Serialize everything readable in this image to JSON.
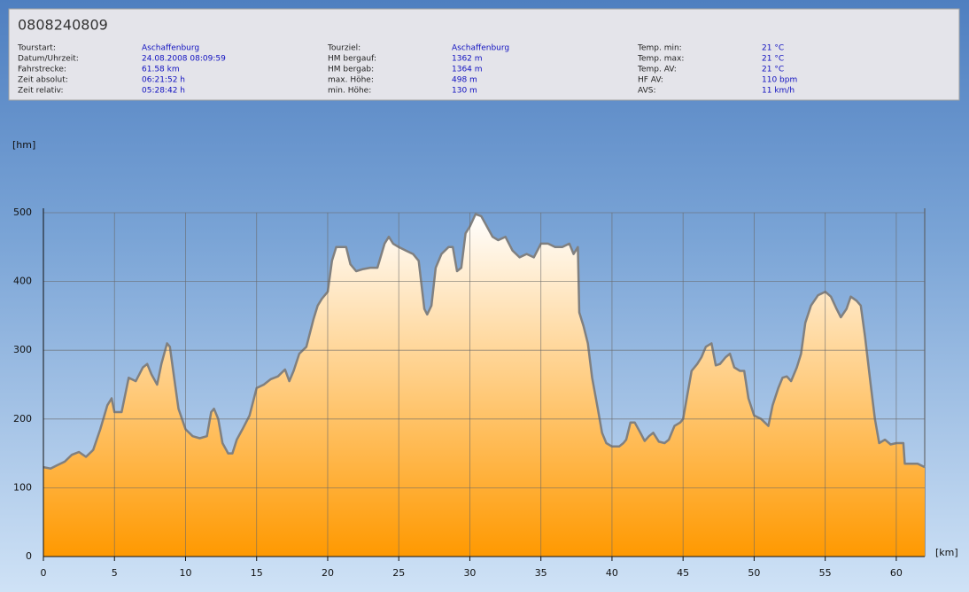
{
  "header": {
    "title": "0808240809",
    "columns": [
      [
        {
          "label": "Tourstart:",
          "value": "Aschaffenburg"
        },
        {
          "label": "Datum/Uhrzeit:",
          "value": "24.08.2008 08:09:59"
        },
        {
          "label": "Fahrstrecke:",
          "value": "61.58 km"
        },
        {
          "label": "Zeit absolut:",
          "value": "06:21:52 h"
        },
        {
          "label": "Zeit relativ:",
          "value": "05:28:42 h"
        }
      ],
      [
        {
          "label": "Tourziel:",
          "value": "Aschaffenburg"
        },
        {
          "label": "HM bergauf:",
          "value": "1362 m"
        },
        {
          "label": "HM bergab:",
          "value": "1364 m"
        },
        {
          "label": "max. Höhe:",
          "value": "498 m"
        },
        {
          "label": "min. Höhe:",
          "value": "130 m"
        }
      ],
      [
        {
          "label": "Temp. min:",
          "value": "21 °C"
        },
        {
          "label": "Temp. max:",
          "value": "21 °C"
        },
        {
          "label": "Temp. AV:",
          "value": "21 °C"
        },
        {
          "label": "HF AV:",
          "value": "110 bpm"
        },
        {
          "label": "AVS:",
          "value": "11 km/h"
        }
      ]
    ]
  },
  "chart_data": {
    "type": "area",
    "x_label": "[km]",
    "y_label": "[hm]",
    "x": [
      0,
      0.5,
      1,
      1.5,
      2,
      2.5,
      3,
      3.5,
      4,
      4.5,
      4.8,
      5,
      5.5,
      6,
      6.5,
      7,
      7.3,
      7.6,
      8,
      8.3,
      8.7,
      8.9,
      9.2,
      9.5,
      10,
      10.5,
      11,
      11.5,
      11.8,
      12,
      12.3,
      12.6,
      13,
      13.3,
      13.6,
      14,
      14.5,
      15,
      15.5,
      16,
      16.5,
      17,
      17.3,
      17.6,
      18,
      18.5,
      19,
      19.3,
      19.6,
      20,
      20.3,
      20.6,
      21,
      21.3,
      21.6,
      22,
      22.5,
      23,
      23.5,
      24,
      24.3,
      24.6,
      25,
      25.5,
      26,
      26.4,
      26.8,
      27,
      27.3,
      27.6,
      28,
      28.5,
      28.8,
      29.1,
      29.4,
      29.7,
      30,
      30.4,
      30.8,
      31.2,
      31.6,
      32,
      32.5,
      33,
      33.5,
      34,
      34.5,
      35,
      35.5,
      36,
      36.5,
      37,
      37.3,
      37.6,
      37.7,
      38,
      38.3,
      38.6,
      39,
      39.3,
      39.6,
      40,
      40.5,
      40.8,
      41,
      41.3,
      41.6,
      42,
      42.3,
      42.6,
      42.9,
      43.3,
      43.7,
      44,
      44.4,
      44.8,
      45,
      45.3,
      45.6,
      46,
      46.3,
      46.6,
      47,
      47.3,
      47.6,
      48,
      48.3,
      48.6,
      49,
      49.3,
      49.6,
      50,
      50.5,
      51,
      51.3,
      51.7,
      52,
      52.3,
      52.6,
      53,
      53.3,
      53.6,
      54,
      54.5,
      55,
      55.4,
      55.8,
      56.1,
      56.5,
      56.8,
      57.2,
      57.5,
      57.8,
      58.2,
      58.5,
      58.8,
      59.2,
      59.6,
      60,
      60.5,
      60.6,
      61,
      61.5,
      62
    ],
    "values": [
      130,
      128,
      133,
      138,
      148,
      152,
      145,
      155,
      185,
      220,
      230,
      210,
      210,
      260,
      255,
      275,
      280,
      265,
      250,
      280,
      310,
      305,
      260,
      215,
      185,
      175,
      172,
      175,
      210,
      215,
      200,
      165,
      150,
      150,
      170,
      185,
      205,
      245,
      250,
      258,
      262,
      272,
      255,
      270,
      295,
      305,
      345,
      365,
      375,
      385,
      430,
      450,
      450,
      450,
      425,
      415,
      418,
      420,
      420,
      455,
      465,
      455,
      450,
      445,
      440,
      430,
      360,
      352,
      365,
      420,
      440,
      450,
      450,
      415,
      420,
      470,
      480,
      498,
      495,
      480,
      465,
      460,
      465,
      445,
      435,
      440,
      435,
      455,
      455,
      450,
      450,
      455,
      440,
      450,
      355,
      335,
      310,
      260,
      215,
      180,
      165,
      160,
      160,
      165,
      170,
      195,
      195,
      180,
      168,
      175,
      180,
      167,
      165,
      170,
      190,
      195,
      200,
      235,
      270,
      280,
      290,
      305,
      310,
      278,
      280,
      290,
      295,
      275,
      270,
      270,
      230,
      205,
      200,
      190,
      220,
      245,
      260,
      262,
      255,
      275,
      295,
      340,
      365,
      380,
      385,
      378,
      360,
      348,
      360,
      378,
      372,
      365,
      320,
      250,
      200,
      165,
      170,
      163,
      165,
      165,
      135,
      135,
      135,
      130
    ],
    "xlim": [
      0,
      62
    ],
    "ylim": [
      0,
      500
    ],
    "xticks": [
      0,
      5,
      10,
      15,
      20,
      25,
      30,
      35,
      40,
      45,
      50,
      55,
      60
    ],
    "yticks": [
      0,
      100,
      200,
      300,
      400,
      500
    ],
    "grid": true,
    "line_color": "#808080",
    "fill_colors": [
      "#ffffff",
      "#ff9900"
    ]
  }
}
